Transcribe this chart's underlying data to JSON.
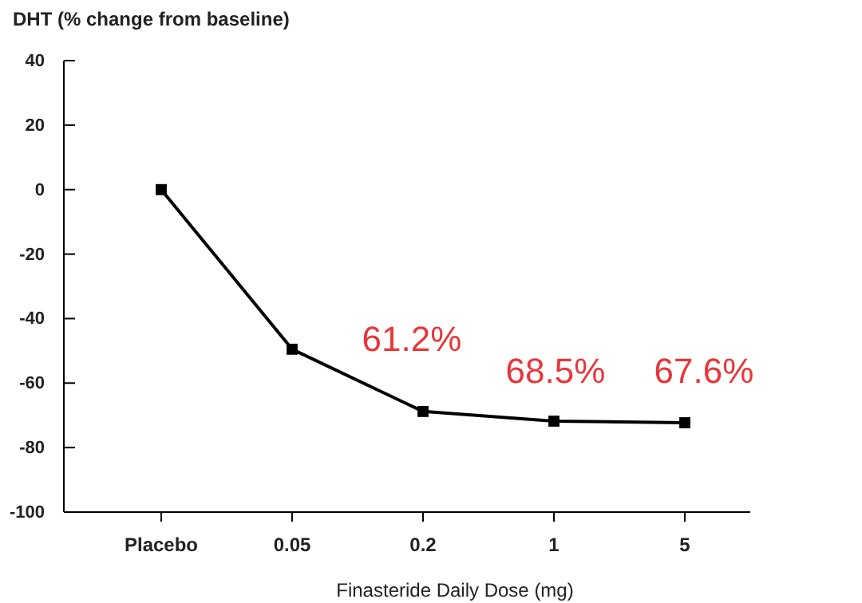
{
  "chart_data": {
    "type": "line",
    "title": "DHT (% change from baseline)",
    "xlabel": "Finasteride Daily Dose (mg)",
    "categories": [
      "Placebo",
      "0.05",
      "0.2",
      "1",
      "5"
    ],
    "series": [
      {
        "color": "#000000",
        "values": [
          0,
          -49.5,
          -68.8,
          -71.8,
          -72.3
        ]
      }
    ],
    "ylim": [
      -100,
      40
    ],
    "yticks": [
      -100,
      -80,
      -60,
      -40,
      -20,
      0,
      20,
      40
    ],
    "marker": "square",
    "line_style": "solid",
    "grid": false,
    "annotations": [
      "61.2%",
      "68.5%",
      "67.6%"
    ]
  }
}
